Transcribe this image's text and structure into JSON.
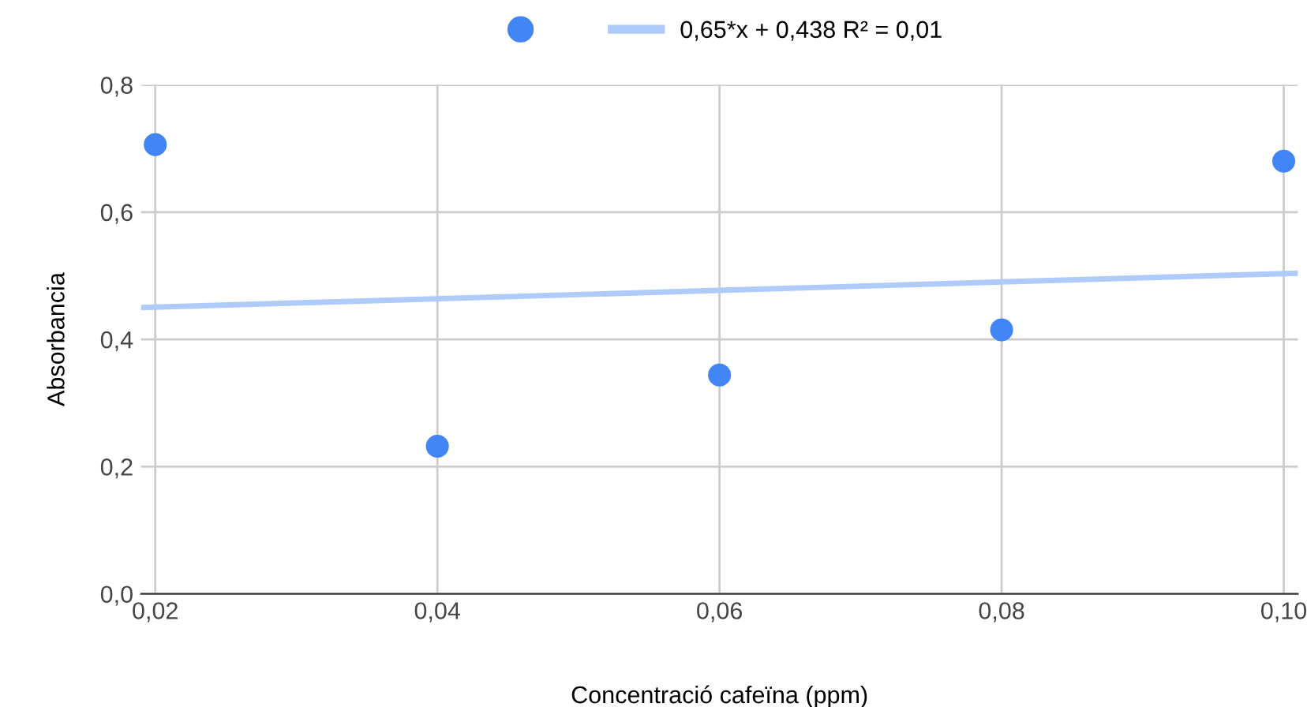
{
  "chart_data": {
    "type": "scatter",
    "xlabel": "Concentració cafeïna (ppm)",
    "ylabel": "Absorbancia",
    "x": [
      0.02,
      0.04,
      0.06,
      0.08,
      0.1
    ],
    "series": [
      {
        "color": "#4285f4",
        "marker": "circle",
        "values": [
          0.706,
          0.232,
          0.344,
          0.415,
          0.68
        ]
      },
      {
        "type": "line",
        "name": "0,65*x + 0,438 R² = 0,01",
        "color": "#aecbfa",
        "x": [
          0.019,
          0.101
        ],
        "values": [
          0.45,
          0.504
        ]
      }
    ],
    "xlim": [
      0.019,
      0.101
    ],
    "ylim": [
      0,
      0.8
    ],
    "xticks": [
      {
        "value": 0.02,
        "label": "0,02"
      },
      {
        "value": 0.04,
        "label": "0,04"
      },
      {
        "value": 0.06,
        "label": "0,06"
      },
      {
        "value": 0.08,
        "label": "0,08"
      },
      {
        "value": 0.1,
        "label": "0,10"
      }
    ],
    "yticks": [
      {
        "value": 0,
        "label": "0,0"
      },
      {
        "value": 0.2,
        "label": "0,2"
      },
      {
        "value": 0.4,
        "label": "0,4"
      },
      {
        "value": 0.6,
        "label": "0,6"
      },
      {
        "value": 0.8,
        "label": "0,8"
      }
    ],
    "grid": true,
    "legend": "top"
  }
}
